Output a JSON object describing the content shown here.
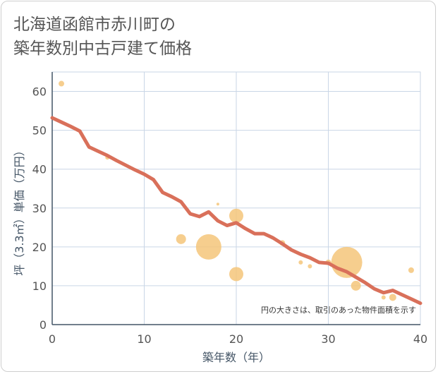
{
  "title_lines": [
    "北海道函館市赤川町の",
    "築年数別中古戸建て価格"
  ],
  "chart_data": {
    "type": "scatter",
    "title": "北海道函館市赤川町の築年数別中古戸建て価格",
    "xlabel": "築年数（年）",
    "ylabel": "坪（3.3㎡）単価（万円）",
    "xlim": [
      0,
      40
    ],
    "ylim": [
      0,
      65
    ],
    "xticks": [
      0,
      10,
      20,
      30,
      40
    ],
    "yticks": [
      0,
      10,
      20,
      30,
      40,
      50,
      60
    ],
    "grid": true,
    "note": "円の大きさは、取引のあった物件面積を示す",
    "colors": {
      "bubble": "#f5c57a",
      "trend": "#d9705a",
      "grid": "#c9d6e6",
      "axis": "#445566"
    },
    "points": [
      {
        "x": 1,
        "y": 62,
        "size": 4
      },
      {
        "x": 6,
        "y": 43,
        "size": 3
      },
      {
        "x": 14,
        "y": 22,
        "size": 7
      },
      {
        "x": 17,
        "y": 20,
        "size": 18
      },
      {
        "x": 18,
        "y": 31,
        "size": 2
      },
      {
        "x": 20,
        "y": 28,
        "size": 10
      },
      {
        "x": 20,
        "y": 13,
        "size": 10
      },
      {
        "x": 25,
        "y": 21,
        "size": 4
      },
      {
        "x": 27,
        "y": 16,
        "size": 3
      },
      {
        "x": 28,
        "y": 15,
        "size": 3
      },
      {
        "x": 30,
        "y": 16,
        "size": 4
      },
      {
        "x": 32,
        "y": 16,
        "size": 22
      },
      {
        "x": 33,
        "y": 10,
        "size": 7
      },
      {
        "x": 36,
        "y": 7,
        "size": 3
      },
      {
        "x": 37,
        "y": 7,
        "size": 5
      },
      {
        "x": 39,
        "y": 14,
        "size": 4
      }
    ],
    "trend": {
      "x": [
        0,
        1,
        2,
        3,
        4,
        5,
        6,
        7,
        8,
        9,
        10,
        11,
        12,
        13,
        14,
        15,
        16,
        17,
        18,
        19,
        20,
        21,
        22,
        23,
        24,
        25,
        26,
        27,
        28,
        29,
        30,
        31,
        32,
        33,
        34,
        35,
        36,
        37,
        38,
        39,
        40
      ],
      "y": [
        53.2,
        52.1,
        51,
        49.8,
        45.7,
        44.6,
        43.5,
        42.2,
        41,
        39.8,
        38.7,
        37.3,
        34,
        32.9,
        31.6,
        28.5,
        27.8,
        29,
        26.7,
        25.5,
        26.2,
        24.7,
        23.4,
        23.4,
        22.3,
        20.8,
        19.2,
        18.1,
        17.2,
        16,
        15.8,
        14.5,
        13.6,
        12.2,
        10.8,
        9.2,
        8.2,
        8.8,
        7.7,
        6.6,
        5.5
      ]
    }
  }
}
